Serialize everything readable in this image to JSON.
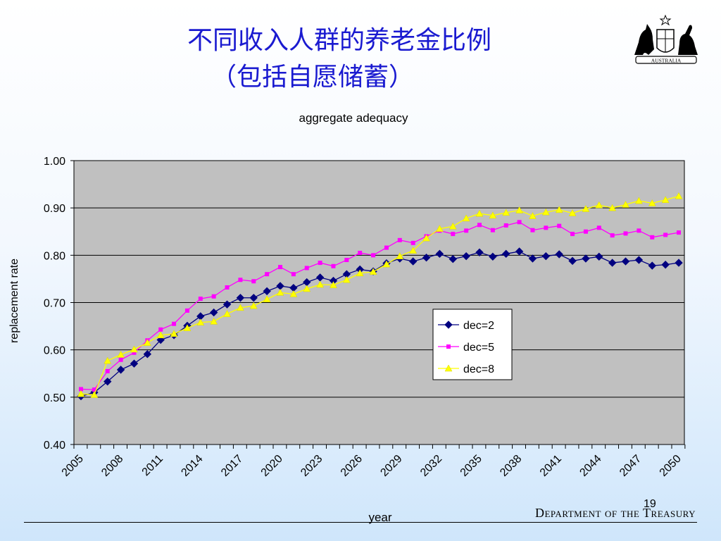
{
  "slide": {
    "title_line1": "不同收入人群的养老金比例",
    "title_line2": "（包括自愿储蓄）",
    "department": "Department of the Treasury",
    "page_number": "19",
    "logo_text": "AUSTRALIA"
  },
  "chart_data": {
    "type": "line",
    "title": "aggregate adequacy",
    "xlabel": "year",
    "ylabel": "replacement rate",
    "x_start": 2005,
    "x_end": 2050,
    "x_tick_labels": [
      "2005",
      "2008",
      "2011",
      "2014",
      "2017",
      "2020",
      "2023",
      "2026",
      "2029",
      "2032",
      "2035",
      "2038",
      "2041",
      "2044",
      "2047",
      "2050"
    ],
    "y_tick_labels": [
      "0.40",
      "0.50",
      "0.60",
      "0.70",
      "0.80",
      "0.90",
      "1.00"
    ],
    "ylim": [
      0.4,
      1.0
    ],
    "grid": true,
    "plot_background": "#c0c0c0",
    "legend_position": "center-right",
    "series": [
      {
        "name": "dec=2",
        "color": "#000080",
        "marker": "diamond",
        "values": [
          0.502,
          0.51,
          0.533,
          0.558,
          0.571,
          0.591,
          0.621,
          0.631,
          0.651,
          0.671,
          0.679,
          0.696,
          0.71,
          0.71,
          0.724,
          0.735,
          0.731,
          0.743,
          0.753,
          0.746,
          0.76,
          0.77,
          0.766,
          0.783,
          0.793,
          0.787,
          0.795,
          0.803,
          0.792,
          0.798,
          0.806,
          0.797,
          0.803,
          0.808,
          0.793,
          0.798,
          0.802,
          0.788,
          0.793,
          0.797,
          0.784,
          0.787,
          0.79,
          0.778,
          0.78,
          0.784
        ]
      },
      {
        "name": "dec=5",
        "color": "#ff00ff",
        "marker": "square",
        "values": [
          0.517,
          0.516,
          0.555,
          0.579,
          0.594,
          0.62,
          0.643,
          0.655,
          0.683,
          0.708,
          0.713,
          0.732,
          0.748,
          0.745,
          0.76,
          0.775,
          0.76,
          0.773,
          0.784,
          0.777,
          0.79,
          0.805,
          0.8,
          0.816,
          0.832,
          0.826,
          0.84,
          0.852,
          0.845,
          0.852,
          0.864,
          0.853,
          0.863,
          0.87,
          0.853,
          0.858,
          0.862,
          0.845,
          0.85,
          0.858,
          0.842,
          0.846,
          0.852,
          0.838,
          0.843,
          0.848
        ]
      },
      {
        "name": "dec=8",
        "color": "#ffff00",
        "marker": "triangle",
        "values": [
          0.507,
          0.505,
          0.577,
          0.59,
          0.601,
          0.615,
          0.631,
          0.634,
          0.646,
          0.658,
          0.66,
          0.676,
          0.689,
          0.693,
          0.707,
          0.721,
          0.718,
          0.729,
          0.738,
          0.737,
          0.748,
          0.762,
          0.765,
          0.781,
          0.798,
          0.81,
          0.836,
          0.856,
          0.861,
          0.878,
          0.888,
          0.884,
          0.89,
          0.895,
          0.883,
          0.891,
          0.896,
          0.889,
          0.898,
          0.906,
          0.9,
          0.907,
          0.915,
          0.91,
          0.917,
          0.925
        ]
      }
    ]
  }
}
